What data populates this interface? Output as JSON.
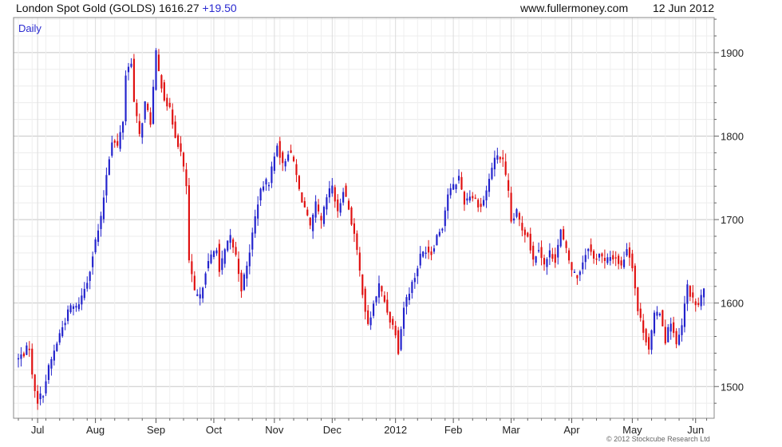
{
  "header": {
    "title": "London Spot Gold (GOLDS)",
    "price": "1616.27",
    "change": "+19.50",
    "site": "www.fullermoney.com",
    "date": "12 Jun 2012"
  },
  "copyright": "© 2012 Stockcube Research Ltd",
  "colors": {
    "up": "#2222cc",
    "down": "#e01010",
    "grid": "#d6d6d6",
    "frame": "#888888"
  },
  "chart_data": {
    "type": "candlestick",
    "period_label": "Daily",
    "ylim": [
      1462,
      1942
    ],
    "y_ticks": [
      1500,
      1600,
      1700,
      1800,
      1900
    ],
    "y_axis_side": "right",
    "grid": true,
    "x_ticks": [
      "Jul",
      "Aug",
      "Sep",
      "Oct",
      "Nov",
      "Dec",
      "2012",
      "Feb",
      "Mar",
      "Apr",
      "May",
      "Jun"
    ],
    "x_tick_positions": [
      7,
      28,
      50,
      71,
      93,
      114,
      137,
      158,
      179,
      201,
      223,
      246
    ],
    "close_series": [
      [
        0,
        1533
      ],
      [
        4,
        1548
      ],
      [
        5,
        1512
      ],
      [
        7,
        1483
      ],
      [
        9,
        1493
      ],
      [
        11,
        1522
      ],
      [
        13,
        1542
      ],
      [
        15,
        1563
      ],
      [
        17,
        1580
      ],
      [
        19,
        1596
      ],
      [
        21,
        1594
      ],
      [
        23,
        1608
      ],
      [
        25,
        1627
      ],
      [
        27,
        1658
      ],
      [
        28,
        1674
      ],
      [
        30,
        1700
      ],
      [
        32,
        1755
      ],
      [
        34,
        1796
      ],
      [
        36,
        1787
      ],
      [
        38,
        1819
      ],
      [
        39,
        1874
      ],
      [
        41,
        1891
      ],
      [
        42,
        1840
      ],
      [
        44,
        1800
      ],
      [
        46,
        1839
      ],
      [
        48,
        1817
      ],
      [
        50,
        1898
      ],
      [
        51,
        1876
      ],
      [
        53,
        1847
      ],
      [
        55,
        1830
      ],
      [
        57,
        1802
      ],
      [
        59,
        1780
      ],
      [
        61,
        1740
      ],
      [
        62,
        1650
      ],
      [
        64,
        1611
      ],
      [
        66,
        1606
      ],
      [
        68,
        1640
      ],
      [
        70,
        1655
      ],
      [
        72,
        1668
      ],
      [
        73,
        1637
      ],
      [
        75,
        1662
      ],
      [
        77,
        1679
      ],
      [
        79,
        1656
      ],
      [
        81,
        1618
      ],
      [
        83,
        1643
      ],
      [
        85,
        1683
      ],
      [
        87,
        1722
      ],
      [
        89,
        1742
      ],
      [
        91,
        1746
      ],
      [
        93,
        1775
      ],
      [
        94,
        1792
      ],
      [
        96,
        1764
      ],
      [
        98,
        1782
      ],
      [
        100,
        1769
      ],
      [
        102,
        1735
      ],
      [
        104,
        1714
      ],
      [
        106,
        1688
      ],
      [
        108,
        1717
      ],
      [
        110,
        1696
      ],
      [
        112,
        1726
      ],
      [
        114,
        1741
      ],
      [
        116,
        1706
      ],
      [
        118,
        1738
      ],
      [
        120,
        1713
      ],
      [
        122,
        1682
      ],
      [
        124,
        1637
      ],
      [
        126,
        1592
      ],
      [
        127,
        1571
      ],
      [
        129,
        1598
      ],
      [
        131,
        1621
      ],
      [
        133,
        1602
      ],
      [
        135,
        1580
      ],
      [
        137,
        1566
      ],
      [
        138,
        1544
      ],
      [
        140,
        1596
      ],
      [
        142,
        1615
      ],
      [
        144,
        1632
      ],
      [
        146,
        1656
      ],
      [
        148,
        1665
      ],
      [
        150,
        1660
      ],
      [
        152,
        1681
      ],
      [
        154,
        1693
      ],
      [
        156,
        1731
      ],
      [
        158,
        1739
      ],
      [
        160,
        1751
      ],
      [
        162,
        1721
      ],
      [
        164,
        1730
      ],
      [
        166,
        1724
      ],
      [
        168,
        1715
      ],
      [
        170,
        1734
      ],
      [
        172,
        1763
      ],
      [
        174,
        1778
      ],
      [
        176,
        1769
      ],
      [
        178,
        1730
      ],
      [
        179,
        1697
      ],
      [
        181,
        1708
      ],
      [
        183,
        1689
      ],
      [
        185,
        1682
      ],
      [
        187,
        1651
      ],
      [
        189,
        1668
      ],
      [
        191,
        1645
      ],
      [
        193,
        1660
      ],
      [
        195,
        1653
      ],
      [
        197,
        1686
      ],
      [
        199,
        1662
      ],
      [
        201,
        1640
      ],
      [
        203,
        1631
      ],
      [
        205,
        1650
      ],
      [
        207,
        1669
      ],
      [
        209,
        1652
      ],
      [
        211,
        1660
      ],
      [
        213,
        1648
      ],
      [
        215,
        1655
      ],
      [
        217,
        1655
      ],
      [
        219,
        1643
      ],
      [
        221,
        1667
      ],
      [
        223,
        1646
      ],
      [
        225,
        1591
      ],
      [
        227,
        1568
      ],
      [
        229,
        1546
      ],
      [
        231,
        1584
      ],
      [
        233,
        1591
      ],
      [
        235,
        1556
      ],
      [
        237,
        1579
      ],
      [
        239,
        1548
      ],
      [
        241,
        1572
      ],
      [
        243,
        1621
      ],
      [
        245,
        1602
      ],
      [
        247,
        1597
      ],
      [
        249,
        1616
      ]
    ]
  }
}
